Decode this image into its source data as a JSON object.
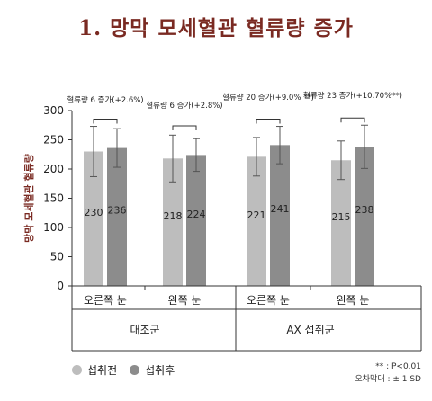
{
  "page_title": "1. 망막 모세혈관 혈류량 증가",
  "legend": [
    {
      "label": "섭취전",
      "color": "#bdbdbd"
    },
    {
      "label": "섭취후",
      "color": "#8c8c8c"
    }
  ],
  "notes": [
    "** : P<0.01",
    "오차막대 : ± 1 SD"
  ],
  "chart_data": {
    "type": "bar",
    "ylabel": "망막 모세혈관 혈류량",
    "ylim": [
      0,
      300
    ],
    "yticks": [
      0,
      50,
      100,
      150,
      200,
      250,
      300
    ],
    "categories": [
      "오른쪽 눈",
      "왼쪽 눈",
      "오른쪽 눈",
      "왼쪽 눈"
    ],
    "groups": [
      {
        "label": "대조군",
        "span": [
          0,
          1
        ]
      },
      {
        "label": "AX 섭취군",
        "span": [
          2,
          3
        ]
      }
    ],
    "series": [
      {
        "name": "섭취전",
        "values": [
          230,
          218,
          221,
          215
        ],
        "errors": [
          43,
          40,
          33,
          33
        ],
        "color": "#bdbdbd"
      },
      {
        "name": "섭취후",
        "values": [
          236,
          224,
          241,
          238
        ],
        "errors": [
          33,
          28,
          32,
          37
        ],
        "color": "#8c8c8c"
      }
    ],
    "data_labels": [
      [
        "230",
        "218",
        "221",
        "215"
      ],
      [
        "236",
        "224",
        "241",
        "238"
      ]
    ],
    "annotations": [
      "혈류량 6 증가(+2.6%)",
      "혈류량 6 증가(+2.8%)",
      "혈류량 20 증가(+9.0% **)",
      "혈류량 23 증가(+10.70%**)"
    ]
  }
}
